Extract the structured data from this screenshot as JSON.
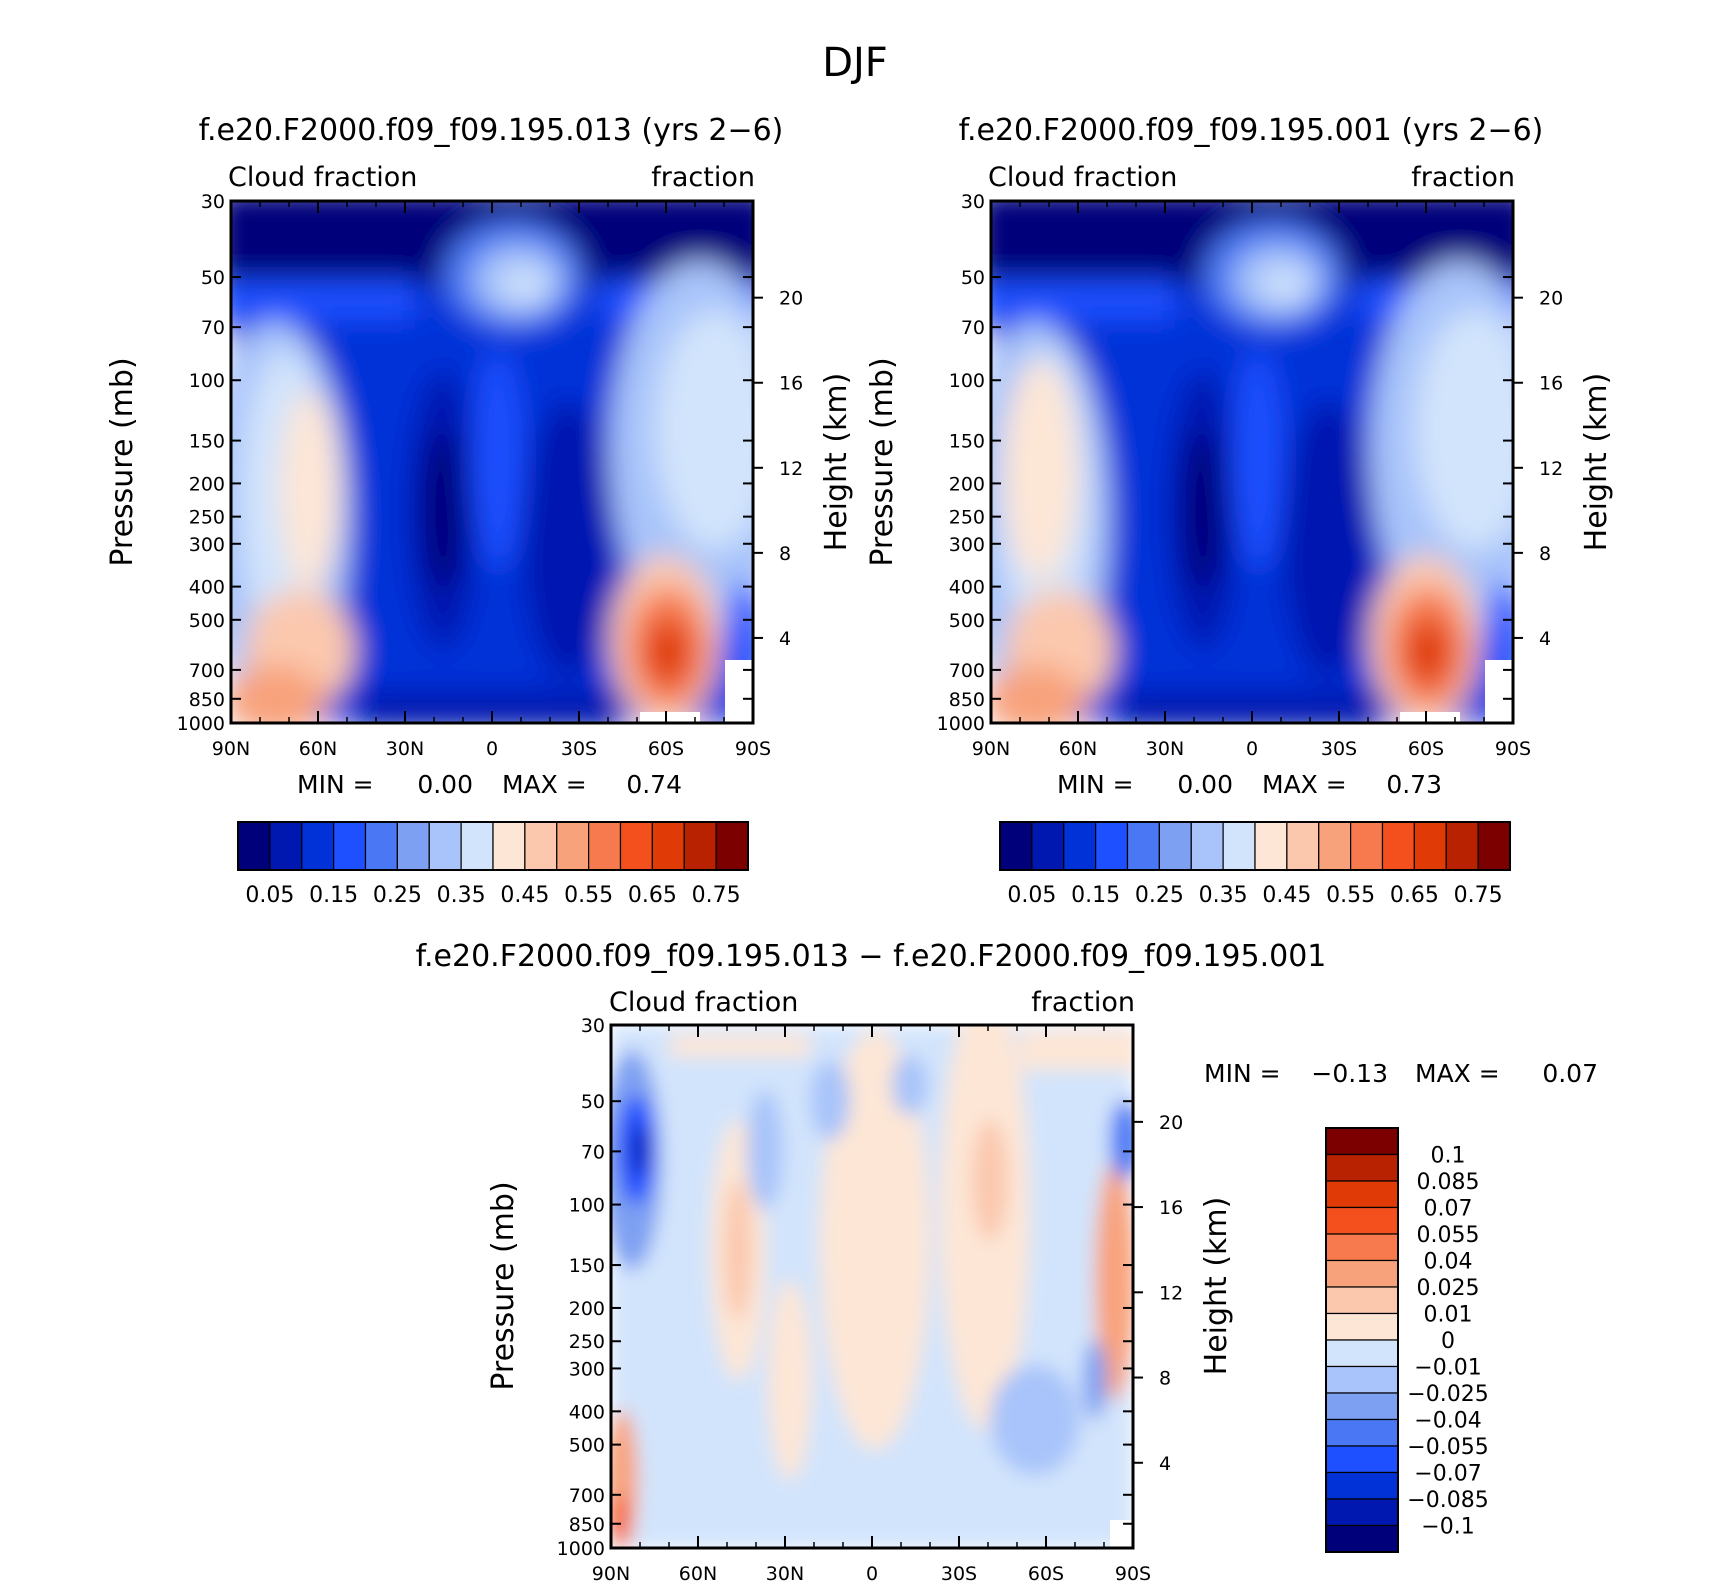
{
  "figure_title": "DJF",
  "colors": {
    "abs_levels": [
      "#00007a",
      "#0018b0",
      "#0032d8",
      "#1e50ff",
      "#4a78f4",
      "#7ea0f2",
      "#a8c4fa",
      "#d2e4fc",
      "#fde6d6",
      "#fbc8ae",
      "#f8a27c",
      "#f67a4e",
      "#f4501e",
      "#e03a06",
      "#b82200",
      "#7c0000"
    ],
    "diff_levels": [
      "#00007a",
      "#0018b0",
      "#0032d8",
      "#1e50ff",
      "#4a78f4",
      "#7ea0f2",
      "#a8c4fa",
      "#d2e4fc",
      "#fde6d6",
      "#fbc8ae",
      "#f8a27c",
      "#f67a4e",
      "#f4501e",
      "#e03a06",
      "#b82200",
      "#7c0000"
    ]
  },
  "chart_data": [
    {
      "type": "heatmap",
      "title": "f.e20.F2000.f09_f09.195.013 (yrs 2−6)",
      "left_label": "Cloud fraction",
      "right_label": "fraction",
      "ylabel": "Pressure (mb)",
      "ylabel_right": "Height (km)",
      "x_ticks": [
        "90N",
        "60N",
        "30N",
        "0",
        "30S",
        "60S",
        "90S"
      ],
      "y_ticks": [
        "30",
        "50",
        "70",
        "100",
        "150",
        "200",
        "250",
        "300",
        "400",
        "500",
        "700",
        "850",
        "1000"
      ],
      "y2_ticks": [
        "20",
        "16",
        "12",
        "8",
        "4"
      ],
      "y_scale": "log pressure, 1000 at bottom",
      "min_label": "MIN =",
      "min_value": "0.00",
      "max_label": "MAX =",
      "max_value": "0.74",
      "colorbar_labels": [
        "0.05",
        "0.15",
        "0.25",
        "0.35",
        "0.45",
        "0.55",
        "0.65",
        "0.75"
      ],
      "levels": 16
    },
    {
      "type": "heatmap",
      "title": "f.e20.F2000.f09_f09.195.001 (yrs 2−6)",
      "left_label": "Cloud fraction",
      "right_label": "fraction",
      "ylabel": "Pressure (mb)",
      "ylabel_right": "Height (km)",
      "x_ticks": [
        "90N",
        "60N",
        "30N",
        "0",
        "30S",
        "60S",
        "90S"
      ],
      "y_ticks": [
        "30",
        "50",
        "70",
        "100",
        "150",
        "200",
        "250",
        "300",
        "400",
        "500",
        "700",
        "850",
        "1000"
      ],
      "y2_ticks": [
        "20",
        "16",
        "12",
        "8",
        "4"
      ],
      "y_scale": "log pressure, 1000 at bottom",
      "min_label": "MIN =",
      "min_value": "0.00",
      "max_label": "MAX =",
      "max_value": "0.73",
      "colorbar_labels": [
        "0.05",
        "0.15",
        "0.25",
        "0.35",
        "0.45",
        "0.55",
        "0.65",
        "0.75"
      ],
      "levels": 16
    },
    {
      "type": "heatmap",
      "title": "f.e20.F2000.f09_f09.195.013 − f.e20.F2000.f09_f09.195.001",
      "left_label": "Cloud fraction",
      "right_label": "fraction",
      "ylabel": "Pressure (mb)",
      "ylabel_right": "Height (km)",
      "x_ticks": [
        "90N",
        "60N",
        "30N",
        "0",
        "30S",
        "60S",
        "90S"
      ],
      "y_ticks": [
        "30",
        "50",
        "70",
        "100",
        "150",
        "200",
        "250",
        "300",
        "400",
        "500",
        "700",
        "850",
        "1000"
      ],
      "y2_ticks": [
        "20",
        "16",
        "12",
        "8",
        "4"
      ],
      "y_scale": "log pressure, 1000 at bottom",
      "min_label": "MIN =",
      "min_value": "−0.13",
      "max_label": "MAX =",
      "max_value": "0.07",
      "colorbar_labels": [
        "0.1",
        "0.085",
        "0.07",
        "0.055",
        "0.04",
        "0.025",
        "0.01",
        "0",
        "−0.01",
        "−0.025",
        "−0.04",
        "−0.055",
        "−0.07",
        "−0.085",
        "−0.1"
      ],
      "levels": 16
    }
  ]
}
